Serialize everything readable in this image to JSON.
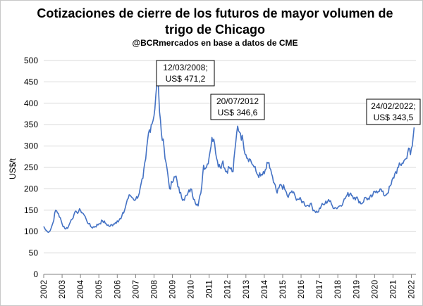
{
  "chart_data": {
    "type": "line",
    "title": "Cotizaciones de cierre de los futuros de mayor volumen de trigo de Chicago",
    "subtitle": "@BCRmercados en base a datos de CME",
    "ylabel": "US$/t",
    "xlabel": "",
    "ylim": [
      0,
      500
    ],
    "yticks": [
      0,
      50,
      100,
      150,
      200,
      250,
      300,
      350,
      400,
      450,
      500
    ],
    "xlim": [
      2002,
      2022.25
    ],
    "xticks": [
      2002,
      2003,
      2004,
      2005,
      2006,
      2007,
      2008,
      2009,
      2010,
      2011,
      2012,
      2013,
      2014,
      2015,
      2016,
      2017,
      2018,
      2019,
      2020,
      2021,
      2022
    ],
    "grid": "horizontal",
    "line_color": "#4472c4",
    "series": [
      {
        "x": [
          2002.0,
          2002.1,
          2002.2,
          2002.35,
          2002.5,
          2002.65,
          2002.8,
          2003.0,
          2003.2,
          2003.35,
          2003.5,
          2003.65,
          2003.8,
          2004.0,
          2004.15,
          2004.3,
          2004.45,
          2004.6,
          2004.8,
          2005.0,
          2005.2,
          2005.4,
          2005.6,
          2005.8,
          2006.0,
          2006.2,
          2006.4,
          2006.55,
          2006.7,
          2006.85,
          2007.0,
          2007.2,
          2007.4,
          2007.55,
          2007.7,
          2007.85,
          2008.0,
          2008.1,
          2008.195,
          2008.3,
          2008.4,
          2008.55,
          2008.7,
          2008.85,
          2009.0,
          2009.2,
          2009.4,
          2009.6,
          2009.8,
          2010.0,
          2010.2,
          2010.4,
          2010.55,
          2010.7,
          2010.85,
          2011.0,
          2011.15,
          2011.3,
          2011.45,
          2011.6,
          2011.75,
          2011.9,
          2012.1,
          2012.3,
          2012.45,
          2012.55,
          2012.7,
          2012.85,
          2013.0,
          2013.2,
          2013.4,
          2013.6,
          2013.8,
          2014.0,
          2014.2,
          2014.35,
          2014.5,
          2014.7,
          2014.9,
          2015.1,
          2015.3,
          2015.5,
          2015.7,
          2015.9,
          2016.1,
          2016.3,
          2016.5,
          2016.7,
          2016.9,
          2017.1,
          2017.3,
          2017.5,
          2017.7,
          2017.9,
          2018.1,
          2018.3,
          2018.5,
          2018.7,
          2018.9,
          2019.1,
          2019.3,
          2019.5,
          2019.7,
          2019.9,
          2020.1,
          2020.3,
          2020.5,
          2020.7,
          2020.9,
          2021.1,
          2021.3,
          2021.5,
          2021.7,
          2021.85,
          2021.95,
          2022.05,
          2022.15
        ],
        "y": [
          112,
          104,
          100,
          102,
          120,
          150,
          142,
          118,
          106,
          112,
          128,
          140,
          145,
          150,
          142,
          130,
          118,
          110,
          112,
          118,
          125,
          118,
          112,
          118,
          125,
          130,
          150,
          175,
          185,
          178,
          175,
          190,
          225,
          270,
          330,
          350,
          370,
          420,
          471.2,
          380,
          330,
          295,
          250,
          200,
          215,
          230,
          190,
          175,
          185,
          200,
          175,
          160,
          190,
          255,
          250,
          275,
          320,
          305,
          265,
          250,
          265,
          240,
          250,
          240,
          310,
          346.6,
          330,
          310,
          280,
          270,
          255,
          235,
          230,
          235,
          260,
          245,
          215,
          190,
          210,
          200,
          180,
          195,
          180,
          175,
          170,
          160,
          165,
          150,
          145,
          160,
          165,
          175,
          160,
          155,
          160,
          170,
          185,
          190,
          180,
          175,
          165,
          180,
          175,
          185,
          195,
          200,
          185,
          190,
          210,
          235,
          250,
          260,
          270,
          295,
          280,
          300,
          343.5
        ]
      }
    ],
    "annotations": [
      {
        "date": "12/03/2008;",
        "value": "US$ 471,2"
      },
      {
        "date": "20/07/2012",
        "value": "US$ 346,6"
      },
      {
        "date": "24/02/2022;",
        "value": "US$ 343,5"
      }
    ]
  }
}
